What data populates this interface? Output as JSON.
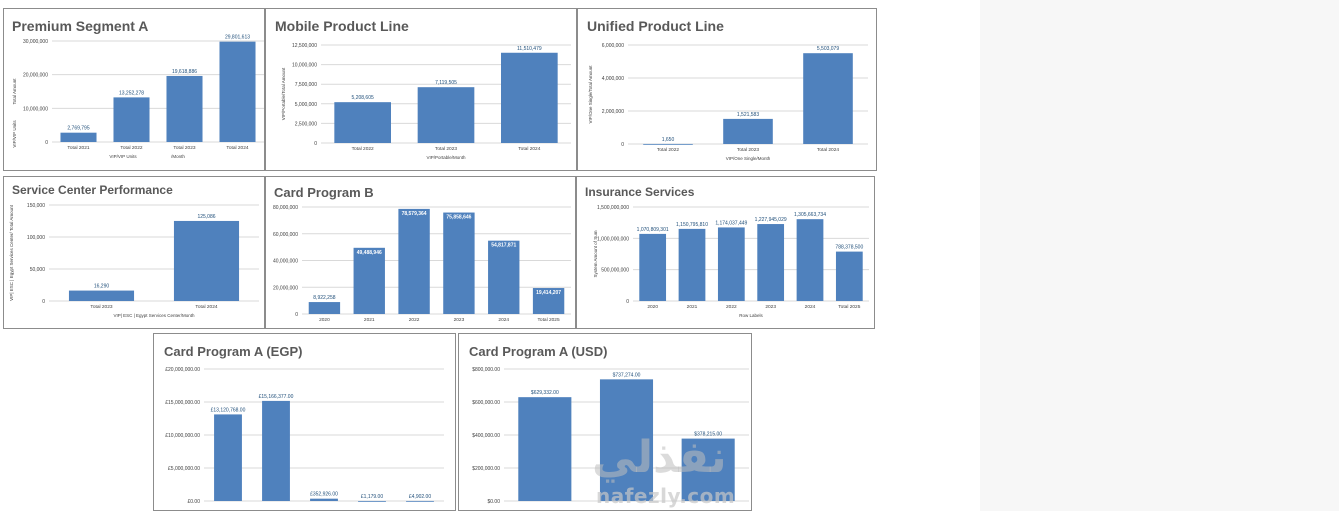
{
  "colors": {
    "bar": "#4f81bd",
    "grid": "#d9d9d9",
    "title": "#595959",
    "axis_text": "#404040",
    "label": "#1f4e79",
    "panel_border": "#8c8c8c"
  },
  "watermark": {
    "arabic": "نفذلي",
    "latin": "nafezly.com"
  },
  "chart_data": [
    {
      "id": "premium-segment-a",
      "type": "bar",
      "title": "Premium Segment A",
      "categories": [
        "Total 2021",
        "Total 2022",
        "Total 2023",
        "Total 2024"
      ],
      "values": [
        2769795,
        13252278,
        19618886,
        29801613
      ],
      "labels": [
        "2,769,795",
        "13,252,278",
        "19,618,886",
        "29,801,613"
      ],
      "ylim": [
        0,
        30000000
      ],
      "yticks": [
        0,
        10000000,
        20000000,
        30000000
      ],
      "ytick_labels": [
        "0",
        "10,000,000",
        "20,000,000",
        "30,000,000"
      ],
      "ylabel": "Total Amount",
      "ylabel2": "VIP/VIP Units",
      "xlabel": "VIP/VIP Units",
      "xlabel2": "/Month",
      "grid": true,
      "legend": "none"
    },
    {
      "id": "mobile-product-line",
      "type": "bar",
      "title": "Mobile Product Line",
      "categories": [
        "Total 2022",
        "Total 2023",
        "Total 2024"
      ],
      "values": [
        5208605,
        7119505,
        11510479
      ],
      "labels": [
        "5,208,605",
        "7,119,505",
        "11,510,479"
      ],
      "ylim": [
        0,
        12500000
      ],
      "yticks": [
        0,
        2500000,
        5000000,
        7500000,
        10000000,
        12500000
      ],
      "ytick_labels": [
        "0",
        "2,500,000",
        "5,000,000",
        "7,500,000",
        "10,000,000",
        "12,500,000"
      ],
      "ylabel": "VIP/Portable/Total Amount",
      "xlabel": "VIP/Portable/Month",
      "grid": true,
      "legend": "none"
    },
    {
      "id": "unified-product-line",
      "type": "bar",
      "title": "Unified Product Line",
      "categories": [
        "Total 2022",
        "Total 2023",
        "Total 2024"
      ],
      "values": [
        1650,
        1521583,
        5503079
      ],
      "labels": [
        "1,650",
        "1,521,583",
        "5,503,079"
      ],
      "ylim": [
        0,
        6000000
      ],
      "yticks": [
        0,
        2000000,
        4000000,
        6000000
      ],
      "ytick_labels": [
        "0",
        "2,000,000",
        "4,000,000",
        "6,000,000"
      ],
      "ylabel": "VIP/One Single/Total Amount",
      "xlabel": "VIP/One Single/Month",
      "grid": true,
      "legend": "none"
    },
    {
      "id": "service-center-performance",
      "type": "bar",
      "title": "Service Center Performance",
      "categories": [
        "Total 2023",
        "Total 2024"
      ],
      "values": [
        16290,
        125086
      ],
      "labels": [
        "16,290",
        "125,086"
      ],
      "ylim": [
        0,
        150000
      ],
      "yticks": [
        0,
        50000,
        100000,
        150000
      ],
      "ytick_labels": [
        "0",
        "50,000",
        "100,000",
        "150,000"
      ],
      "ylabel": "VIP| ESC | Egypt Services Center/ Total Amount",
      "xlabel": "VIP| ESC | Egypt Services Center/Month",
      "grid": true,
      "legend": "none"
    },
    {
      "id": "card-program-b",
      "type": "bar",
      "title": "Card Program B",
      "categories": [
        "2020",
        "2021",
        "2022",
        "2023",
        "2024",
        "Total 2025"
      ],
      "values": [
        8922258,
        49488946,
        78579364,
        75858646,
        54817871,
        19414207
      ],
      "labels": [
        "8,922,258",
        "49,488,946",
        "78,579,364",
        "75,858,646",
        "54,817,871",
        "19,414,207"
      ],
      "ylim": [
        0,
        80000000
      ],
      "yticks": [
        0,
        20000000,
        40000000,
        60000000,
        80000000
      ],
      "ytick_labels": [
        "0",
        "20,000,000",
        "40,000,000",
        "60,000,000",
        "80,000,000"
      ],
      "label_inside": true,
      "grid": true,
      "legend": "none"
    },
    {
      "id": "insurance-services",
      "type": "bar",
      "title": "Insurance Services",
      "categories": [
        "2020",
        "2021",
        "2022",
        "2023",
        "2024",
        "Total 2025"
      ],
      "values": [
        1070809301,
        1150795810,
        1174037449,
        1227945029,
        1305663734,
        788378500
      ],
      "labels": [
        "1,070,809,301",
        "1,150,795,810",
        "1,174,037,449",
        "1,227,945,029",
        "1,305,663,734",
        "788,378,500"
      ],
      "ylim": [
        0,
        1500000000
      ],
      "yticks": [
        0,
        500000000,
        1000000000,
        1500000000
      ],
      "ytick_labels": [
        "0",
        "500,000,000",
        "1,000,000,000",
        "1,500,000,000"
      ],
      "ylabel": "System Amount of Sum",
      "xlabel": "Row Labels",
      "grid": true,
      "legend": "none"
    },
    {
      "id": "card-program-a-egp",
      "type": "bar",
      "title": "Card Program A (EGP)",
      "categories": [
        "",
        "",
        "",
        "",
        ""
      ],
      "values": [
        13120768,
        15166377,
        352926,
        1179,
        4902
      ],
      "labels": [
        "£13,120,768.00",
        "£15,166,377.00",
        "£352,926.00",
        "£1,179.00",
        "£4,902.00"
      ],
      "ylim": [
        0,
        20000000
      ],
      "yticks": [
        0,
        5000000,
        10000000,
        15000000,
        20000000
      ],
      "ytick_labels": [
        "£0.00",
        "£5,000,000.00",
        "£10,000,000.00",
        "£15,000,000.00",
        "£20,000,000.00"
      ],
      "grid": true,
      "legend": "none"
    },
    {
      "id": "card-program-a-usd",
      "type": "bar",
      "title": "Card Program A (USD)",
      "categories": [
        "",
        "",
        ""
      ],
      "values": [
        629332,
        737274,
        378215
      ],
      "labels": [
        "$629,332.00",
        "$737,274.00",
        "$378,215.00"
      ],
      "ylim": [
        0,
        800000
      ],
      "yticks": [
        0,
        200000,
        400000,
        600000,
        800000
      ],
      "ytick_labels": [
        "$0.00",
        "$200,000.00",
        "$400,000.00",
        "$600,000.00",
        "$800,000.00"
      ],
      "grid": true,
      "legend": "none"
    }
  ]
}
